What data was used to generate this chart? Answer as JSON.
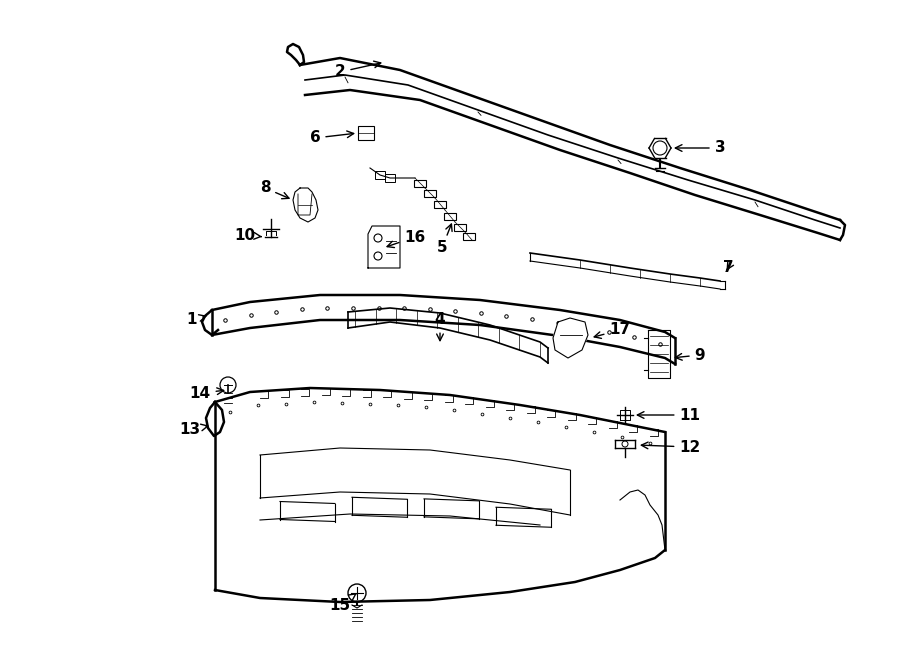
{
  "background_color": "#ffffff",
  "line_color": "#000000",
  "text_color": "#000000",
  "figsize": [
    9.0,
    6.61
  ],
  "dpi": 100,
  "xlim": [
    0,
    900
  ],
  "ylim": [
    0,
    661
  ]
}
